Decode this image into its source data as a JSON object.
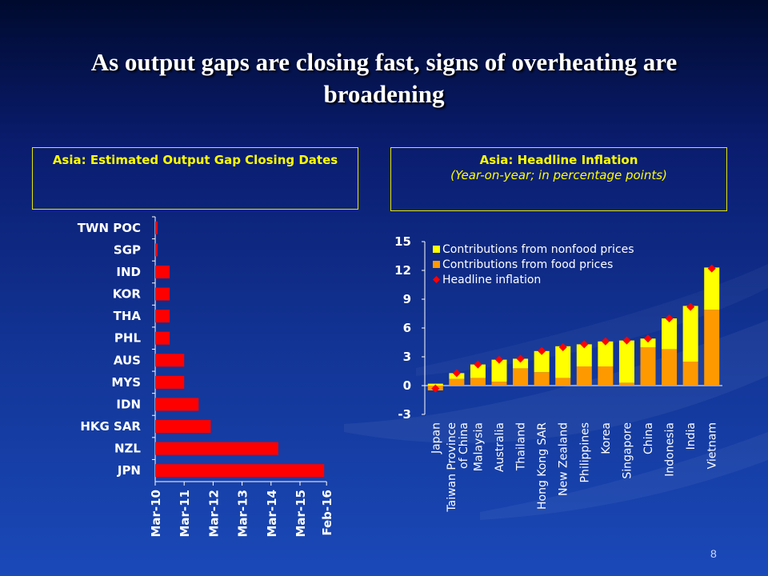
{
  "slide": {
    "title": "As output gaps are closing fast, signs of overheating are broadening",
    "page_number": "8"
  },
  "colors": {
    "background": "#0f2a8a",
    "gap_bar": "#ff0000",
    "nonfood": "#ffff00",
    "food": "#ff9900",
    "headline_marker": "#ff0000",
    "title_box_border": "#e6e600"
  },
  "chart_data": [
    {
      "type": "bar",
      "orientation": "horizontal",
      "title": "Asia: Estimated Output Gap Closing Dates",
      "categories": [
        "TWN POC",
        "SGP",
        "IND",
        "KOR",
        "THA",
        "PHL",
        "AUS",
        "MYS",
        "IDN",
        "HKG SAR",
        "NZL",
        "JPN"
      ],
      "values": [
        "Apr-10",
        "Apr-10",
        "Sep-10",
        "Sep-10",
        "Sep-10",
        "Sep-10",
        "Mar-11",
        "Mar-11",
        "Sep-11",
        "Feb-12",
        "Jun-14",
        "Jan-16"
      ],
      "x_ticks": [
        "Mar-10",
        "Mar-11",
        "Mar-12",
        "Mar-13",
        "Mar-14",
        "Mar-15",
        "Feb-16"
      ],
      "grid": false
    },
    {
      "type": "bar",
      "stacked": true,
      "title": "Asia: Headline Inflation",
      "subtitle": "(Year-on-year; in percentage points)",
      "categories": [
        "Japan",
        "Taiwan Province of China",
        "Malaysia",
        "Australia",
        "Thailand",
        "Hong Kong SAR",
        "New Zealand",
        "Philippines",
        "Korea",
        "Singapore",
        "China",
        "Indonesia",
        "India",
        "Vietnam"
      ],
      "category_lines": [
        [
          "Japan"
        ],
        [
          "Taiwan Province",
          "of China"
        ],
        [
          "Malaysia"
        ],
        [
          "Australia"
        ],
        [
          "Thailand"
        ],
        [
          "Hong Kong SAR"
        ],
        [
          "New Zealand"
        ],
        [
          "Philippines"
        ],
        [
          "Korea"
        ],
        [
          "Singapore"
        ],
        [
          "China"
        ],
        [
          "Indonesia"
        ],
        [
          "India"
        ],
        [
          "Vietnam"
        ]
      ],
      "series": [
        {
          "name": "Contributions from food prices",
          "values": [
            -0.5,
            0.7,
            0.8,
            0.4,
            1.8,
            1.4,
            0.8,
            2.0,
            2.0,
            0.3,
            4.0,
            3.8,
            2.5,
            7.9
          ]
        },
        {
          "name": "Contributions from nonfood prices",
          "values": [
            0.2,
            0.6,
            1.4,
            2.3,
            1.0,
            2.2,
            3.3,
            2.3,
            2.6,
            4.4,
            0.9,
            3.2,
            5.8,
            4.4
          ]
        }
      ],
      "headline": {
        "name": "Headline inflation",
        "values": [
          -0.3,
          1.3,
          2.2,
          2.7,
          2.8,
          3.6,
          4.0,
          4.3,
          4.6,
          4.7,
          4.9,
          7.0,
          8.2,
          12.2
        ]
      },
      "yticks": [
        15,
        12,
        9,
        6,
        3,
        0,
        -3
      ],
      "ylim": [
        -3,
        15
      ],
      "legend_position": "top-left",
      "grid": false
    }
  ]
}
